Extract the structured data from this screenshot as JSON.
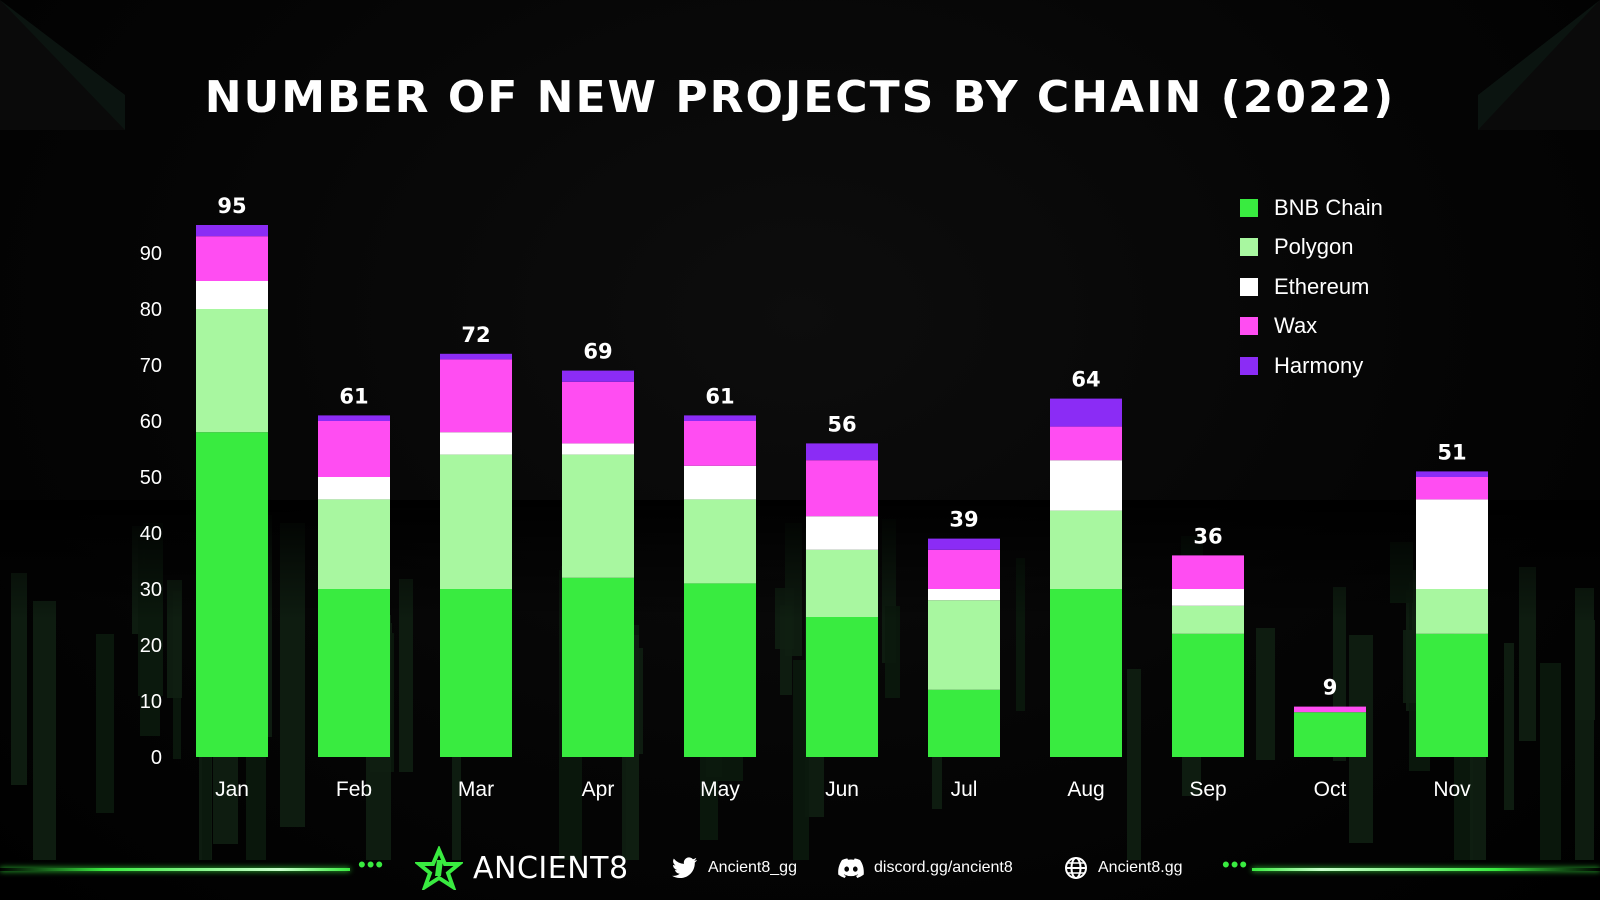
{
  "chart_data": {
    "type": "bar",
    "stacked": true,
    "title": "NUMBER OF NEW PROJECTS BY CHAIN (2022)",
    "categories": [
      "Jan",
      "Feb",
      "Mar",
      "Apr",
      "May",
      "Jun",
      "Jul",
      "Aug",
      "Sep",
      "Oct",
      "Nov"
    ],
    "totals": [
      95,
      61,
      72,
      69,
      61,
      56,
      39,
      64,
      36,
      9,
      51
    ],
    "ylim": [
      0,
      100
    ],
    "yticks": [
      0,
      10,
      20,
      30,
      40,
      50,
      60,
      70,
      80,
      90
    ],
    "legend_position": "top-right",
    "grid": false,
    "series": [
      {
        "name": "BNB Chain",
        "color": "#39eb40",
        "values": [
          58,
          30,
          30,
          32,
          31,
          25,
          12,
          30,
          22,
          8,
          22
        ]
      },
      {
        "name": "Polygon",
        "color": "#a8f7a0",
        "values": [
          22,
          16,
          24,
          22,
          15,
          12,
          16,
          14,
          5,
          0,
          8
        ]
      },
      {
        "name": "Ethereum",
        "color": "#ffffff",
        "values": [
          5,
          4,
          4,
          2,
          6,
          6,
          2,
          9,
          3,
          0,
          16
        ]
      },
      {
        "name": "Wax",
        "color": "#ff4df2",
        "values": [
          8,
          10,
          13,
          11,
          8,
          10,
          7,
          6,
          6,
          1,
          4
        ]
      },
      {
        "name": "Harmony",
        "color": "#8b2cf5",
        "values": [
          2,
          1,
          1,
          2,
          1,
          3,
          2,
          5,
          0,
          0,
          1
        ]
      }
    ]
  },
  "footer": {
    "brand": "ANCIENT8",
    "brand_icon": "ancient8-logo-icon",
    "twitter": "Ancient8_gg",
    "discord": "discord.gg/ancient8",
    "website": "Ancient8.gg",
    "dots": "•••"
  }
}
